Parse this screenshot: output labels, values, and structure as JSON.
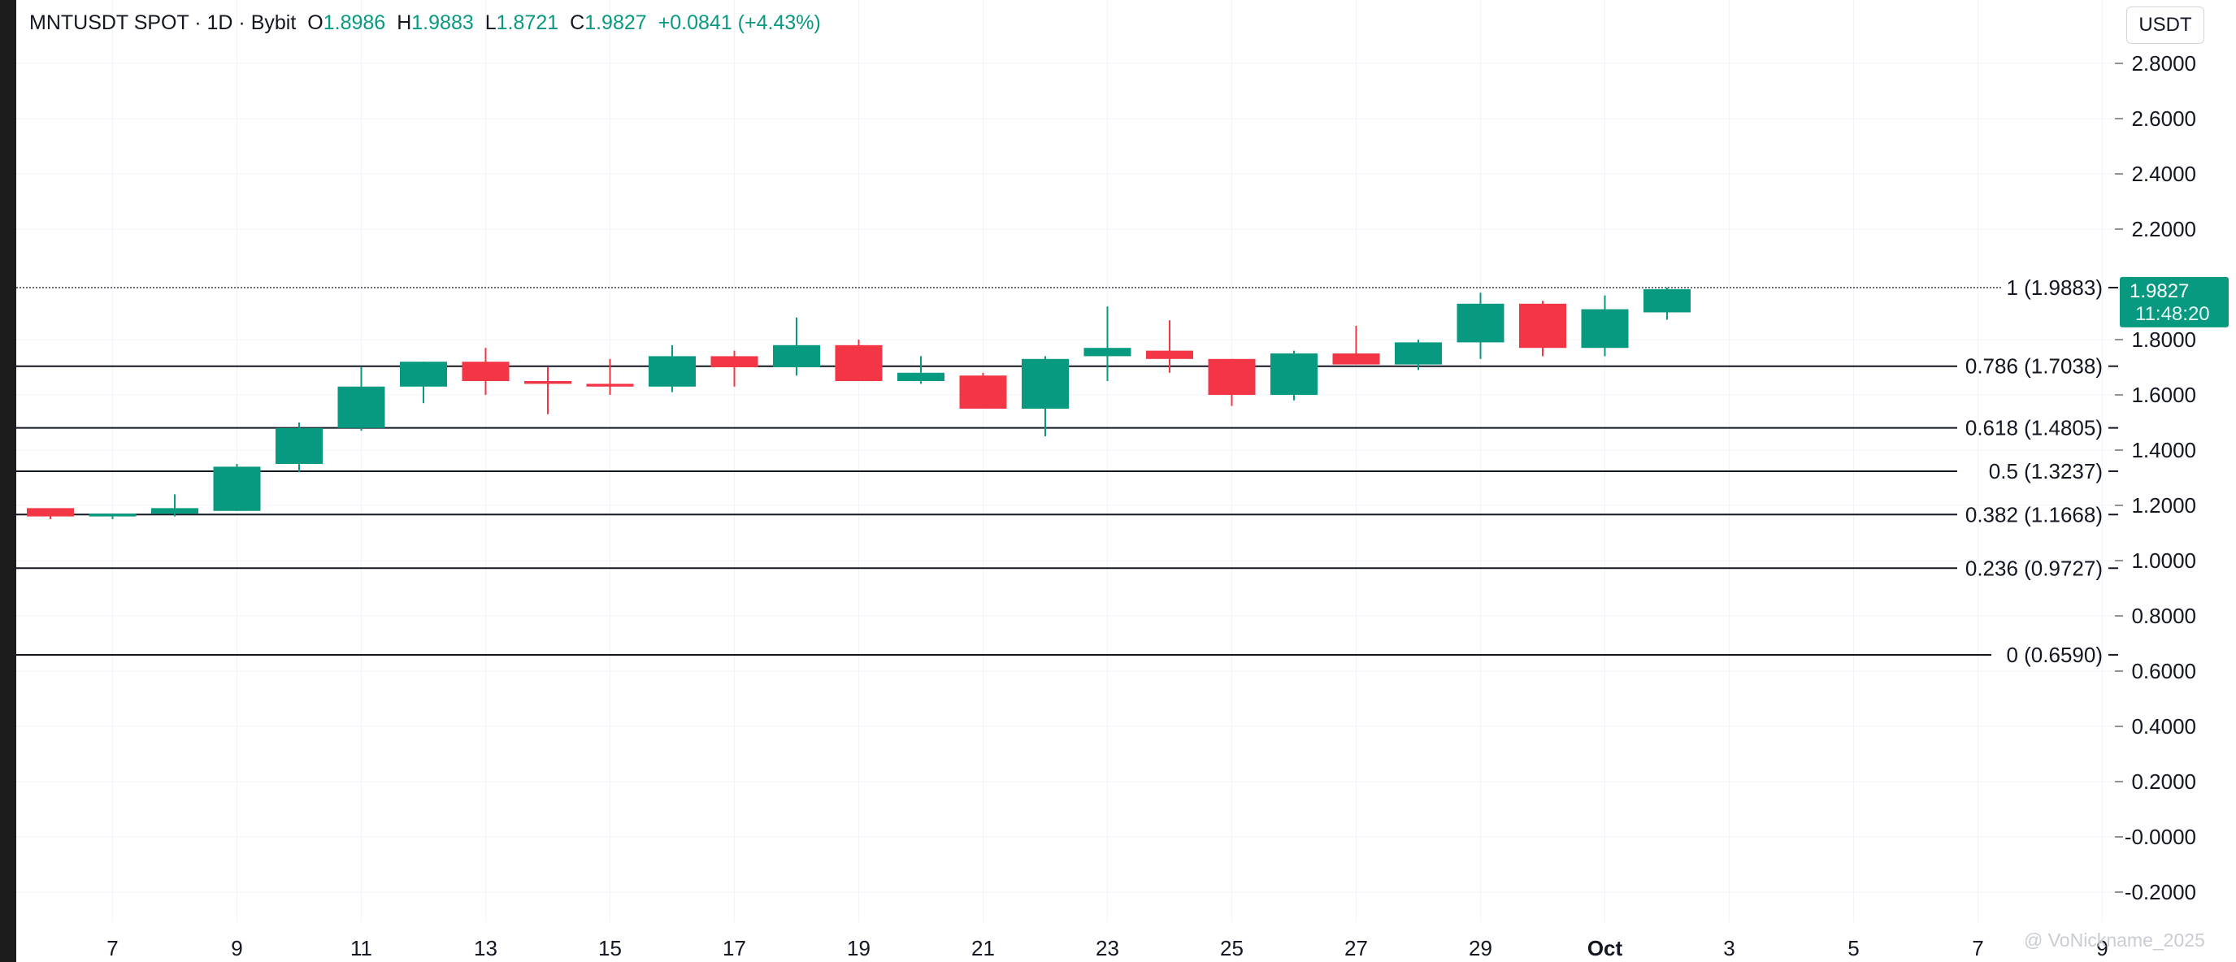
{
  "header": {
    "symbol": "MNTUSDT SPOT · 1D · Bybit",
    "open_label": "O",
    "open": "1.8986",
    "high_label": "H",
    "high": "1.9883",
    "low_label": "L",
    "low": "1.8721",
    "close_label": "C",
    "close": "1.9827",
    "change": "+0.0841 (+4.43%)"
  },
  "currency": "USDT",
  "price_badge": {
    "price": "1.9827",
    "countdown": "11:48:20"
  },
  "watermark": "@ VoNickname_2025",
  "colors": {
    "up": "#089981",
    "down": "#f23645",
    "grid": "#f0f3fa",
    "line": "#131722"
  },
  "chart_data": {
    "type": "candlestick",
    "y_axis_side": "right",
    "ylim": [
      -0.3,
      2.9
    ],
    "y_ticks": [
      "2.8000",
      "2.6000",
      "2.4000",
      "2.2000",
      "1.8000",
      "1.6000",
      "1.4000",
      "1.2000",
      "1.0000",
      "0.8000",
      "0.6000",
      "0.4000",
      "0.2000",
      "-0.0000",
      "-0.2000"
    ],
    "x_ticks": [
      "7",
      "9",
      "11",
      "13",
      "15",
      "17",
      "19",
      "21",
      "23",
      "25",
      "27",
      "29",
      "Oct",
      "3",
      "5",
      "7",
      "9"
    ],
    "candles": [
      {
        "date": "Sep 6",
        "open": 1.19,
        "high": 1.19,
        "low": 1.15,
        "close": 1.16
      },
      {
        "date": "Sep 7",
        "open": 1.16,
        "high": 1.17,
        "low": 1.15,
        "close": 1.17
      },
      {
        "date": "Sep 8",
        "open": 1.17,
        "high": 1.24,
        "low": 1.16,
        "close": 1.19
      },
      {
        "date": "Sep 9",
        "open": 1.18,
        "high": 1.35,
        "low": 1.18,
        "close": 1.34
      },
      {
        "date": "Sep 10",
        "open": 1.35,
        "high": 1.5,
        "low": 1.32,
        "close": 1.48
      },
      {
        "date": "Sep 11",
        "open": 1.48,
        "high": 1.7,
        "low": 1.47,
        "close": 1.63
      },
      {
        "date": "Sep 12",
        "open": 1.63,
        "high": 1.72,
        "low": 1.57,
        "close": 1.72
      },
      {
        "date": "Sep 13",
        "open": 1.72,
        "high": 1.77,
        "low": 1.6,
        "close": 1.65
      },
      {
        "date": "Sep 14",
        "open": 1.65,
        "high": 1.7,
        "low": 1.53,
        "close": 1.64
      },
      {
        "date": "Sep 15",
        "open": 1.64,
        "high": 1.73,
        "low": 1.6,
        "close": 1.63
      },
      {
        "date": "Sep 16",
        "open": 1.63,
        "high": 1.78,
        "low": 1.61,
        "close": 1.74
      },
      {
        "date": "Sep 17",
        "open": 1.74,
        "high": 1.76,
        "low": 1.63,
        "close": 1.7
      },
      {
        "date": "Sep 18",
        "open": 1.7,
        "high": 1.88,
        "low": 1.67,
        "close": 1.78
      },
      {
        "date": "Sep 19",
        "open": 1.78,
        "high": 1.8,
        "low": 1.65,
        "close": 1.65
      },
      {
        "date": "Sep 20",
        "open": 1.65,
        "high": 1.74,
        "low": 1.64,
        "close": 1.68
      },
      {
        "date": "Sep 21",
        "open": 1.67,
        "high": 1.68,
        "low": 1.55,
        "close": 1.55
      },
      {
        "date": "Sep 22",
        "open": 1.55,
        "high": 1.74,
        "low": 1.45,
        "close": 1.73
      },
      {
        "date": "Sep 23",
        "open": 1.74,
        "high": 1.92,
        "low": 1.65,
        "close": 1.77
      },
      {
        "date": "Sep 24",
        "open": 1.76,
        "high": 1.87,
        "low": 1.68,
        "close": 1.73
      },
      {
        "date": "Sep 25",
        "open": 1.73,
        "high": 1.73,
        "low": 1.56,
        "close": 1.6
      },
      {
        "date": "Sep 26",
        "open": 1.6,
        "high": 1.76,
        "low": 1.58,
        "close": 1.75
      },
      {
        "date": "Sep 27",
        "open": 1.75,
        "high": 1.85,
        "low": 1.71,
        "close": 1.71
      },
      {
        "date": "Sep 28",
        "open": 1.71,
        "high": 1.8,
        "low": 1.69,
        "close": 1.79
      },
      {
        "date": "Sep 29",
        "open": 1.79,
        "high": 1.97,
        "low": 1.73,
        "close": 1.93
      },
      {
        "date": "Sep 30",
        "open": 1.93,
        "high": 1.94,
        "low": 1.74,
        "close": 1.77
      },
      {
        "date": "Oct 1",
        "open": 1.77,
        "high": 1.96,
        "low": 1.74,
        "close": 1.91
      },
      {
        "date": "Oct 2",
        "open": 1.8986,
        "high": 1.9883,
        "low": 1.8721,
        "close": 1.9827
      }
    ],
    "fib_levels": [
      {
        "label": "1 (1.9883)",
        "value": 1.9883
      },
      {
        "label": "0.786 (1.7038)",
        "value": 1.7038
      },
      {
        "label": "0.618 (1.4805)",
        "value": 1.4805
      },
      {
        "label": "0.5 (1.3237)",
        "value": 1.3237
      },
      {
        "label": "0.382 (1.1668)",
        "value": 1.1668
      },
      {
        "label": "0.236 (0.9727)",
        "value": 0.9727
      },
      {
        "label": "0 (0.6590)",
        "value": 0.659
      }
    ]
  }
}
